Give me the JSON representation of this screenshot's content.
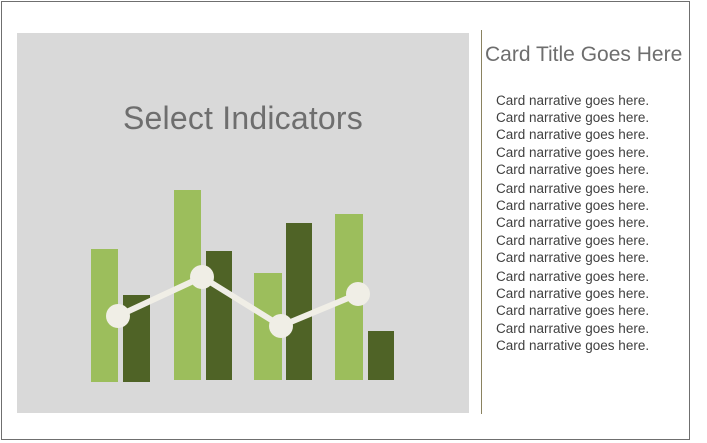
{
  "card": {
    "placeholder": {
      "title": "Select Indicators",
      "icon": "bar-line-chart-illustration",
      "colors": {
        "background": "#d9d9d9",
        "light_bar": "#9cbe5c",
        "dark_bar": "#4f6326",
        "line": "#f0eee6"
      }
    },
    "title": "Card Title Goes Here",
    "narrative": [
      "Card narrative goes here.",
      "Card narrative goes here.",
      "Card narrative goes here.",
      "Card narrative goes here.",
      "Card narrative goes here.",
      "Card narrative goes here.",
      "Card narrative goes here.",
      "Card narrative goes here.",
      "Card narrative goes here.",
      "Card narrative goes here.",
      "Card narrative goes here.",
      "Card narrative goes here.",
      "Card narrative goes here.",
      "Card narrative goes here.",
      "Card narrative goes here."
    ]
  }
}
